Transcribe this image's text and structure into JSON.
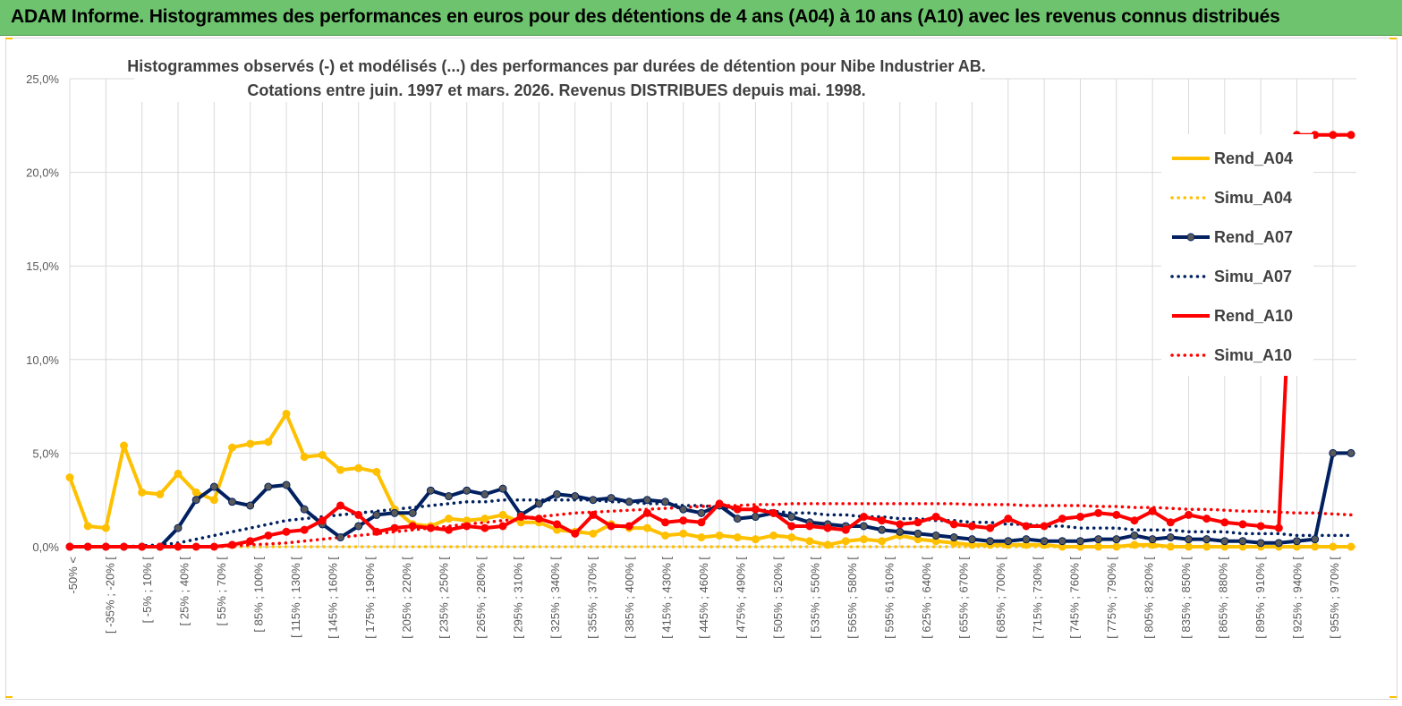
{
  "header": {
    "banner_title": "ADAM Informe. Histogrammes des performances en euros pour des détentions de 4 ans (A04) à 10 ans (A10) avec les revenus connus distribués"
  },
  "chart_data": {
    "type": "line",
    "title_line1": "Histogrammes observés (-)  et modélisés (...) des performances par durées de détention pour Nibe Industrier AB.",
    "title_line2": "Cotations entre juin. 1997 et mars. 2026. Revenus DISTRIBUES depuis mai. 1998.",
    "ylim": [
      0,
      25
    ],
    "yticks": [
      "0,0%",
      "5,0%",
      "10,0%",
      "15,0%",
      "20,0%",
      "25,0%"
    ],
    "ytick_values": [
      0,
      5,
      10,
      15,
      20,
      25
    ],
    "xtick_labels": [
      "-50% <",
      "[ -35% ; -20% [",
      "[ -5% ; 10% [",
      "[ 25% ; 40% [",
      "[ 55% ; 70% [",
      "[ 85% ; 100% [",
      "[ 115% ; 130% [",
      "[ 145% ; 160% [",
      "[ 175% ; 190% [",
      "[ 205% ; 220% [",
      "[ 235% ; 250% [",
      "[ 265% ; 280% [",
      "[ 295% ; 310% [",
      "[ 325% ; 340% [",
      "[ 355% ; 370% [",
      "[ 385% ; 400% [",
      "[ 415% ; 430% [",
      "[ 445% ; 460% [",
      "[ 475% ; 490% [",
      "[ 505% ; 520% [",
      "[ 535% ; 550% [",
      "[ 565% ; 580% [",
      "[ 595% ; 610% [",
      "[ 625% ; 640% [",
      "[ 655% ; 670% [",
      "[ 685% ; 700% [",
      "[ 715% ; 730% [",
      "[ 745% ; 760% [",
      "[ 775% ; 790% [",
      "[ 805% ; 820% [",
      "[ 835% ; 850% [",
      "[ 865% ; 880% [",
      "[ 895% ; 910% [",
      "[ 925% ; 940% [",
      "[ 955% ; 970% ["
    ],
    "n_points": 72,
    "series": [
      {
        "name": "Rend_A04",
        "color": "#ffc000",
        "style": "solid",
        "values": [
          3.7,
          1.1,
          1.0,
          5.4,
          2.9,
          2.8,
          3.9,
          2.9,
          2.5,
          5.3,
          5.5,
          5.6,
          7.1,
          4.8,
          4.9,
          4.1,
          4.2,
          4.0,
          2.0,
          1.2,
          1.1,
          1.5,
          1.4,
          1.5,
          1.7,
          1.3,
          1.3,
          0.9,
          0.8,
          0.7,
          1.2,
          1.0,
          1.0,
          0.6,
          0.7,
          0.5,
          0.6,
          0.5,
          0.4,
          0.6,
          0.5,
          0.3,
          0.1,
          0.3,
          0.4,
          0.3,
          0.6,
          0.4,
          0.3,
          0.2,
          0.1,
          0.1,
          0.1,
          0.1,
          0.1,
          0.0,
          0.0,
          0.0,
          0.0,
          0.1,
          0.1,
          0.0,
          0.0,
          0.0,
          0.0,
          0.0,
          0.0,
          0.0,
          0.0,
          0.0,
          0.0,
          0.0
        ]
      },
      {
        "name": "Simu_A04",
        "color": "#ffc000",
        "style": "dotted",
        "values": [
          0.0,
          0.0,
          0.0,
          0.0,
          0.0,
          0.0,
          0.0,
          0.0,
          0.0,
          0.0,
          0.0,
          0.0,
          0.0,
          0.0,
          0.0,
          0.0,
          0.0,
          0.0,
          0.0,
          0.0,
          0.0,
          0.0,
          0.0,
          0.0,
          0.0,
          0.0,
          0.0,
          0.0,
          0.0,
          0.0,
          0.0,
          0.0,
          0.0,
          0.0,
          0.0,
          0.0,
          0.0,
          0.0,
          0.0,
          0.0,
          0.0,
          0.0,
          0.0,
          0.0,
          0.0,
          0.0,
          0.0,
          0.0,
          0.0,
          0.0,
          0.0,
          0.0,
          0.0,
          0.0,
          0.0,
          0.0,
          0.0,
          0.0,
          0.0,
          0.0,
          0.0,
          0.0,
          0.0,
          0.0,
          0.0,
          0.0,
          0.0,
          0.0,
          0.0,
          0.0,
          0.0,
          0.0
        ]
      },
      {
        "name": "Rend_A07",
        "color": "#002060",
        "style": "solid",
        "values": [
          0.0,
          0.0,
          0.0,
          0.0,
          0.0,
          0.0,
          1.0,
          2.5,
          3.2,
          2.4,
          2.2,
          3.2,
          3.3,
          2.0,
          1.2,
          0.5,
          1.1,
          1.7,
          1.8,
          1.8,
          3.0,
          2.7,
          3.0,
          2.8,
          3.1,
          1.7,
          2.3,
          2.8,
          2.7,
          2.5,
          2.6,
          2.4,
          2.5,
          2.4,
          2.0,
          1.8,
          2.2,
          1.5,
          1.6,
          1.8,
          1.6,
          1.3,
          1.2,
          1.1,
          1.1,
          0.9,
          0.8,
          0.7,
          0.6,
          0.5,
          0.4,
          0.3,
          0.3,
          0.4,
          0.3,
          0.3,
          0.3,
          0.4,
          0.4,
          0.6,
          0.4,
          0.5,
          0.4,
          0.4,
          0.3,
          0.3,
          0.2,
          0.2,
          0.3,
          0.4,
          5.0,
          5.0
        ]
      },
      {
        "name": "Simu_A07",
        "color": "#002060",
        "style": "dotted",
        "values": [
          0.0,
          0.0,
          0.0,
          0.0,
          0.05,
          0.1,
          0.2,
          0.4,
          0.6,
          0.8,
          1.0,
          1.2,
          1.4,
          1.5,
          1.6,
          1.7,
          1.8,
          1.9,
          2.0,
          2.1,
          2.2,
          2.3,
          2.4,
          2.4,
          2.5,
          2.5,
          2.5,
          2.5,
          2.5,
          2.5,
          2.4,
          2.4,
          2.3,
          2.3,
          2.2,
          2.2,
          2.1,
          2.0,
          2.0,
          1.9,
          1.8,
          1.8,
          1.7,
          1.7,
          1.6,
          1.6,
          1.5,
          1.5,
          1.4,
          1.4,
          1.3,
          1.3,
          1.2,
          1.2,
          1.1,
          1.1,
          1.0,
          1.0,
          1.0,
          0.9,
          0.9,
          0.9,
          0.8,
          0.8,
          0.8,
          0.7,
          0.7,
          0.7,
          0.6,
          0.6,
          0.6,
          0.6
        ]
      },
      {
        "name": "Rend_A10",
        "color": "#ff0000",
        "style": "solid",
        "values": [
          0.0,
          0.0,
          0.0,
          0.0,
          0.0,
          0.0,
          0.0,
          0.0,
          0.0,
          0.1,
          0.3,
          0.6,
          0.8,
          0.9,
          1.4,
          2.2,
          1.7,
          0.8,
          1.0,
          1.1,
          1.0,
          0.9,
          1.1,
          1.0,
          1.1,
          1.6,
          1.5,
          1.2,
          0.7,
          1.7,
          1.1,
          1.1,
          1.8,
          1.3,
          1.4,
          1.3,
          2.3,
          2.0,
          2.0,
          1.8,
          1.1,
          1.1,
          1.0,
          0.9,
          1.6,
          1.4,
          1.2,
          1.3,
          1.6,
          1.2,
          1.1,
          1.0,
          1.5,
          1.1,
          1.1,
          1.5,
          1.6,
          1.8,
          1.7,
          1.4,
          1.9,
          1.3,
          1.7,
          1.5,
          1.3,
          1.2,
          1.1,
          1.0,
          22.0,
          22.0,
          22.0,
          22.0
        ]
      },
      {
        "name": "Simu_A10",
        "color": "#ff0000",
        "style": "dotted",
        "values": [
          0.0,
          0.0,
          0.0,
          0.0,
          0.0,
          0.0,
          0.0,
          0.0,
          0.0,
          0.05,
          0.1,
          0.15,
          0.2,
          0.3,
          0.4,
          0.5,
          0.6,
          0.7,
          0.8,
          0.9,
          1.0,
          1.1,
          1.2,
          1.3,
          1.4,
          1.5,
          1.6,
          1.7,
          1.8,
          1.85,
          1.9,
          1.95,
          2.0,
          2.05,
          2.1,
          2.15,
          2.2,
          2.2,
          2.25,
          2.25,
          2.3,
          2.3,
          2.3,
          2.3,
          2.3,
          2.3,
          2.3,
          2.3,
          2.3,
          2.3,
          2.25,
          2.25,
          2.25,
          2.2,
          2.2,
          2.2,
          2.2,
          2.15,
          2.15,
          2.1,
          2.1,
          2.05,
          2.0,
          2.0,
          1.95,
          1.9,
          1.9,
          1.85,
          1.8,
          1.8,
          1.75,
          1.7
        ]
      }
    ],
    "legend_position": "right"
  }
}
